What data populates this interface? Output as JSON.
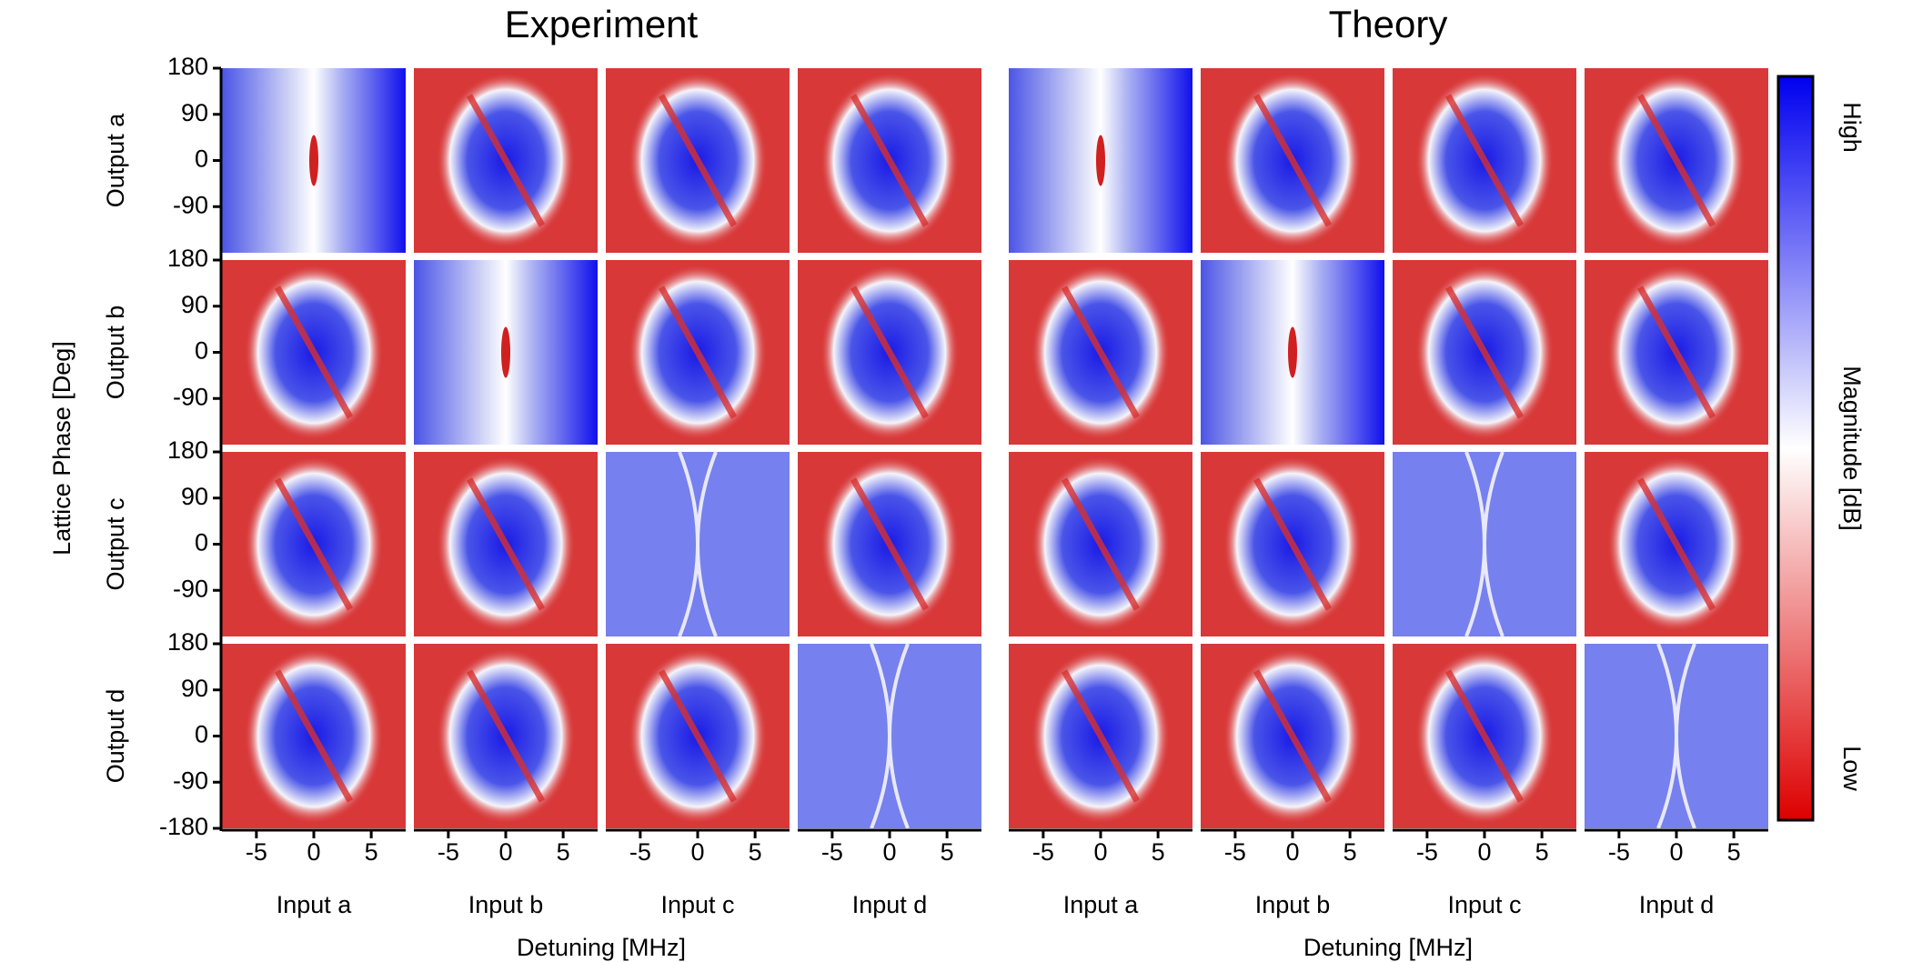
{
  "titles": [
    "Experiment",
    "Theory"
  ],
  "x_axis": {
    "label": "Detuning [MHz]",
    "lim": [
      -8,
      8
    ],
    "ticks": [
      -5,
      0,
      5
    ]
  },
  "y_axis": {
    "label": "Lattice Phase [Deg]",
    "lim": [
      -180,
      180
    ],
    "ticks": [
      180,
      90,
      0,
      -90,
      -180
    ]
  },
  "inputs": [
    "Input a",
    "Input b",
    "Input c",
    "Input d"
  ],
  "outputs": [
    "Output a",
    "Output b",
    "Output c",
    "Output d"
  ],
  "colorbar": {
    "high": "High",
    "label": "Magnitude  [dB]",
    "low": "Low"
  }
}
